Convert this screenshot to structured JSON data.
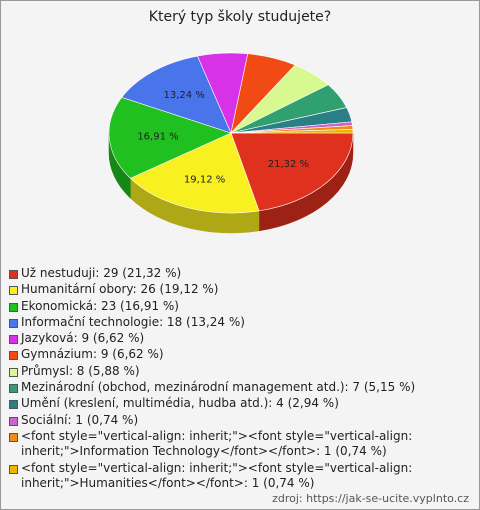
{
  "chart_data": {
    "type": "pie",
    "title": "Který typ školy studujete?",
    "categories": [
      "Už nestuduji: 29 (21,32 %)",
      "Humanitární obory: 26 (19,12 %)",
      "Ekonomická: 23 (16,91 %)",
      "Informační technologie: 18 (13,24 %)",
      "Jazyková: 9 (6,62 %)",
      "Gymnázium: 9 (6,62 %)",
      "Průmysl: 8 (5,88 %)",
      "Mezinárodní (obchod, mezinárodní management atd.): 7 (5,15 %)",
      "Umění (kreslení, multimédia, hudba atd.): 4 (2,94 %)",
      "Sociální: 1 (0,74 %)",
      "<font style=\"vertical-align: inherit;\"><font style=\"vertical-align: inherit;\">Information Technology</font></font>: 1 (0,74 %)",
      "<font style=\"vertical-align: inherit;\"><font style=\"vertical-align: inherit;\">Humanities</font></font>: 1 (0,74 %)"
    ],
    "values": [
      21.32,
      19.12,
      16.91,
      13.24,
      6.62,
      6.62,
      5.88,
      5.15,
      2.94,
      0.74,
      0.74,
      0.74
    ],
    "value_labels": [
      "21,32 %",
      "19,12 %",
      "16,91 %",
      "13,24 %",
      null,
      null,
      null,
      null,
      null,
      null,
      null,
      null
    ],
    "colors": [
      "#e0301e",
      "#f8f020",
      "#20c020",
      "#4a74ea",
      "#d832e8",
      "#f24a14",
      "#d8f890",
      "#30a070",
      "#2a7f86",
      "#c866c8",
      "#f08a1a",
      "#f0b400"
    ],
    "source": "zdroj: https://jak-se-ucite.vyplnto.cz"
  }
}
